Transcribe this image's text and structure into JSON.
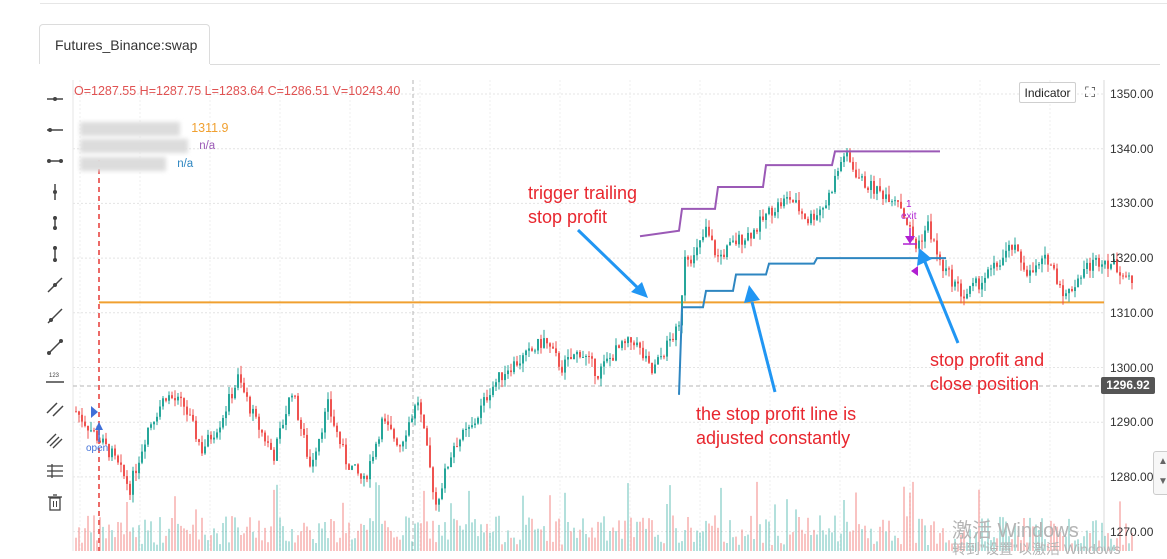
{
  "tab": {
    "label": "Futures_Binance:swap"
  },
  "ohlc": {
    "text": "O=1287.55 H=1287.75 L=1283.64 C=1286.51 V=10243.40"
  },
  "legend": [
    {
      "value": "1311.9",
      "color": "#f0a030"
    },
    {
      "value": "n/a",
      "color": "#9b59b6"
    },
    {
      "value": "n/a",
      "color": "#2e86c1"
    }
  ],
  "toolbar": {
    "indicator_label": "Indicator",
    "expand_icon": "expand-icon",
    "tools": [
      "horizontal-line-icon",
      "horizontal-ray-icon",
      "horizontal-segment-icon",
      "vertical-line-icon",
      "vertical-segment-icon",
      "vertical-ray-icon",
      "trend-line-icon",
      "trend-ray-icon",
      "trend-segment-icon",
      "price-label-icon",
      "parallel-channel-icon",
      "multi-line-icon",
      "fib-retracement-icon",
      "trash-icon"
    ]
  },
  "colors": {
    "up": "#26a69a",
    "down": "#ef5350",
    "orange": "#f0a030",
    "purple": "#9b59b6",
    "blue": "#2e86c1",
    "annotation": "#e8262e",
    "arrow": "#2196f3"
  },
  "annotations": {
    "trigger": [
      "trigger trailing",
      "stop profit"
    ],
    "adjusted": [
      "the stop profit line is",
      "adjusted constantly"
    ],
    "close": [
      "stop profit and",
      "close position"
    ]
  },
  "markers": {
    "open": "open",
    "exit_count": "1",
    "exit": "exit"
  },
  "price_tag": "1296.92",
  "watermark": {
    "line1": "激活 Windows",
    "line2": "转到\"设置\"以激活 Windows"
  },
  "chart_data": {
    "type": "candlestick",
    "y_ticks": [
      1350,
      1340,
      1330,
      1320,
      1310,
      1300,
      1290,
      1280,
      1270
    ],
    "y_tick_labels": [
      "1350.00",
      "1340.00",
      "1330.00",
      "1320.00",
      "1310.00",
      "1300.00",
      "1290.00",
      "1280.00",
      "1270.00"
    ],
    "ylim": [
      1268,
      1351
    ],
    "grid": true,
    "horizontal_line": 1311.9,
    "current_price": 1296.92,
    "close_anchors": [
      [
        0,
        1292
      ],
      [
        6,
        1288
      ],
      [
        12,
        1284
      ],
      [
        18,
        1278
      ],
      [
        24,
        1289
      ],
      [
        30,
        1295
      ],
      [
        36,
        1293
      ],
      [
        42,
        1285
      ],
      [
        48,
        1290
      ],
      [
        54,
        1298
      ],
      [
        60,
        1290
      ],
      [
        66,
        1284
      ],
      [
        72,
        1296
      ],
      [
        78,
        1282
      ],
      [
        84,
        1293
      ],
      [
        90,
        1283
      ],
      [
        96,
        1279
      ],
      [
        102,
        1290
      ],
      [
        108,
        1286
      ],
      [
        114,
        1294
      ],
      [
        120,
        1275
      ],
      [
        126,
        1286
      ],
      [
        132,
        1289
      ],
      [
        138,
        1296
      ],
      [
        144,
        1300
      ],
      [
        150,
        1302
      ],
      [
        156,
        1305
      ],
      [
        162,
        1300
      ],
      [
        168,
        1303
      ],
      [
        174,
        1299
      ],
      [
        180,
        1303
      ],
      [
        186,
        1305
      ],
      [
        192,
        1299
      ],
      [
        198,
        1305
      ],
      [
        201,
        1307
      ],
      [
        203,
        1321
      ],
      [
        206,
        1320
      ],
      [
        210,
        1325
      ],
      [
        214,
        1320
      ],
      [
        220,
        1323
      ],
      [
        226,
        1325
      ],
      [
        232,
        1329
      ],
      [
        238,
        1331
      ],
      [
        244,
        1327
      ],
      [
        250,
        1330
      ],
      [
        256,
        1339
      ],
      [
        262,
        1334
      ],
      [
        268,
        1332
      ],
      [
        274,
        1331
      ],
      [
        280,
        1322
      ],
      [
        284,
        1326
      ],
      [
        288,
        1319
      ],
      [
        292,
        1316
      ],
      [
        296,
        1313
      ],
      [
        300,
        1315
      ],
      [
        306,
        1318
      ],
      [
        312,
        1322
      ],
      [
        318,
        1317
      ],
      [
        324,
        1320
      ],
      [
        330,
        1313
      ],
      [
        336,
        1318
      ],
      [
        342,
        1320
      ],
      [
        348,
        1318
      ],
      [
        352,
        1315
      ]
    ],
    "trail_upper": [
      [
        188,
        1324
      ],
      [
        201,
        1325
      ],
      [
        202,
        1329
      ],
      [
        213,
        1329
      ],
      [
        214,
        1333
      ],
      [
        229,
        1333
      ],
      [
        230,
        1337
      ],
      [
        252,
        1337
      ],
      [
        253,
        1339.5
      ],
      [
        288,
        1339.5
      ]
    ],
    "trail_lower": [
      [
        201,
        1295
      ],
      [
        202,
        1311
      ],
      [
        209,
        1311
      ],
      [
        210,
        1314
      ],
      [
        219,
        1314
      ],
      [
        220,
        1317
      ],
      [
        230,
        1317
      ],
      [
        231,
        1319
      ],
      [
        246,
        1319
      ],
      [
        247,
        1320
      ],
      [
        290,
        1320
      ]
    ]
  }
}
